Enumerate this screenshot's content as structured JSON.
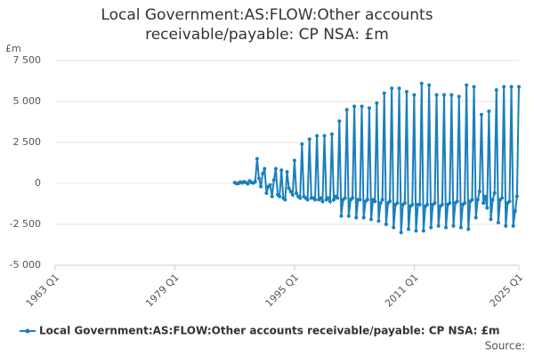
{
  "chart_data": {
    "type": "line",
    "title": "Local Government:AS:FLOW:Other accounts receivable/payable: CP NSA: £m",
    "y_label": "£m",
    "source": "Source:",
    "x": [
      1987,
      1987.25,
      1987.5,
      1987.75,
      1988,
      1988.25,
      1988.5,
      1988.75,
      1989,
      1989.25,
      1989.5,
      1989.75,
      1990,
      1990.25,
      1990.5,
      1990.75,
      1991,
      1991.25,
      1991.5,
      1991.75,
      1992,
      1992.25,
      1992.5,
      1992.75,
      1993,
      1993.25,
      1993.5,
      1993.75,
      1994,
      1994.25,
      1994.5,
      1994.75,
      1995,
      1995.25,
      1995.5,
      1995.75,
      1996,
      1996.25,
      1996.5,
      1996.75,
      1997,
      1997.25,
      1997.5,
      1997.75,
      1998,
      1998.25,
      1998.5,
      1998.75,
      1999,
      1999.25,
      1999.5,
      1999.75,
      2000,
      2000.25,
      2000.5,
      2000.75,
      2001,
      2001.25,
      2001.5,
      2001.75,
      2002,
      2002.25,
      2002.5,
      2002.75,
      2003,
      2003.25,
      2003.5,
      2003.75,
      2004,
      2004.25,
      2004.5,
      2004.75,
      2005,
      2005.25,
      2005.5,
      2005.75,
      2006,
      2006.25,
      2006.5,
      2006.75,
      2007,
      2007.25,
      2007.5,
      2007.75,
      2008,
      2008.25,
      2008.5,
      2008.75,
      2009,
      2009.25,
      2009.5,
      2009.75,
      2010,
      2010.25,
      2010.5,
      2010.75,
      2011,
      2011.25,
      2011.5,
      2011.75,
      2012,
      2012.25,
      2012.5,
      2012.75,
      2013,
      2013.25,
      2013.5,
      2013.75,
      2014,
      2014.25,
      2014.5,
      2014.75,
      2015,
      2015.25,
      2015.5,
      2015.75,
      2016,
      2016.25,
      2016.5,
      2016.75,
      2017,
      2017.25,
      2017.5,
      2017.75,
      2018,
      2018.25,
      2018.5,
      2018.75,
      2019,
      2019.25,
      2019.5,
      2019.75,
      2020,
      2020.25,
      2020.5,
      2020.75,
      2021,
      2021.25,
      2021.5,
      2021.75,
      2022,
      2022.25,
      2022.5,
      2022.75,
      2023,
      2023.25,
      2023.5,
      2023.75,
      2024,
      2024.25,
      2024.5,
      2024.75,
      2025
    ],
    "series": [
      {
        "name": "Local Government:AS:FLOW:Other accounts receivable/payable: CP NSA: £m",
        "color": "#1b7fbd",
        "values": [
          50,
          -20,
          0,
          80,
          30,
          100,
          50,
          -30,
          150,
          50,
          20,
          100,
          1500,
          300,
          -200,
          600,
          900,
          -600,
          -200,
          -100,
          -800,
          200,
          900,
          -700,
          -800,
          800,
          -900,
          -1000,
          700,
          -300,
          -500,
          -700,
          1400,
          -600,
          -800,
          -900,
          2400,
          -800,
          -900,
          -1000,
          2700,
          -900,
          -900,
          -1000,
          2900,
          -1000,
          -900,
          -1100,
          2900,
          -1000,
          -900,
          -1100,
          3000,
          -1000,
          -800,
          -900,
          3800,
          -2000,
          -1000,
          -900,
          4500,
          -2000,
          -1000,
          -900,
          4700,
          -2100,
          -1000,
          -1000,
          4700,
          -2100,
          -1100,
          -1000,
          4600,
          -2200,
          -1000,
          -1100,
          4900,
          -2300,
          -1200,
          -1000,
          5500,
          -2500,
          -1200,
          -1100,
          5800,
          -2700,
          -1300,
          -1200,
          5800,
          -3000,
          -1300,
          -1200,
          5600,
          -2800,
          -1400,
          -1300,
          5400,
          -2900,
          -1300,
          -1300,
          6100,
          -2900,
          -1400,
          -1300,
          6000,
          -2700,
          -1300,
          -1200,
          5400,
          -2600,
          -1400,
          -1300,
          5400,
          -2700,
          -1300,
          -1200,
          5400,
          -2600,
          -1200,
          -1100,
          5300,
          -2700,
          -1300,
          -1200,
          6000,
          -2800,
          -1100,
          -1000,
          5900,
          -2100,
          -1000,
          -500,
          4200,
          -1200,
          -800,
          -1500,
          4400,
          -2200,
          -1000,
          -600,
          5700,
          -2400,
          -1000,
          -900,
          5900,
          -2600,
          -1200,
          -1100,
          5900,
          -2600,
          -1700,
          -800,
          5900
        ]
      }
    ],
    "xlim": [
      1963,
      2025
    ],
    "xticks": [
      {
        "value": 1963,
        "label": "1963 Q1"
      },
      {
        "value": 1979,
        "label": "1979 Q1"
      },
      {
        "value": 1995,
        "label": "1995 Q1"
      },
      {
        "value": 2011,
        "label": "2011 Q1"
      },
      {
        "value": 2025,
        "label": "2025 Q1"
      }
    ],
    "ylim": [
      -5000,
      7500
    ],
    "yticks": [
      {
        "value": -5000,
        "label": "-5 000"
      },
      {
        "value": -2500,
        "label": "-2 500"
      },
      0,
      {
        "value": 2500,
        "label": "2 500"
      },
      {
        "value": 5000,
        "label": "5 000"
      },
      {
        "value": 7500,
        "label": "7 500"
      }
    ],
    "grid": true,
    "legend": "bottom"
  }
}
